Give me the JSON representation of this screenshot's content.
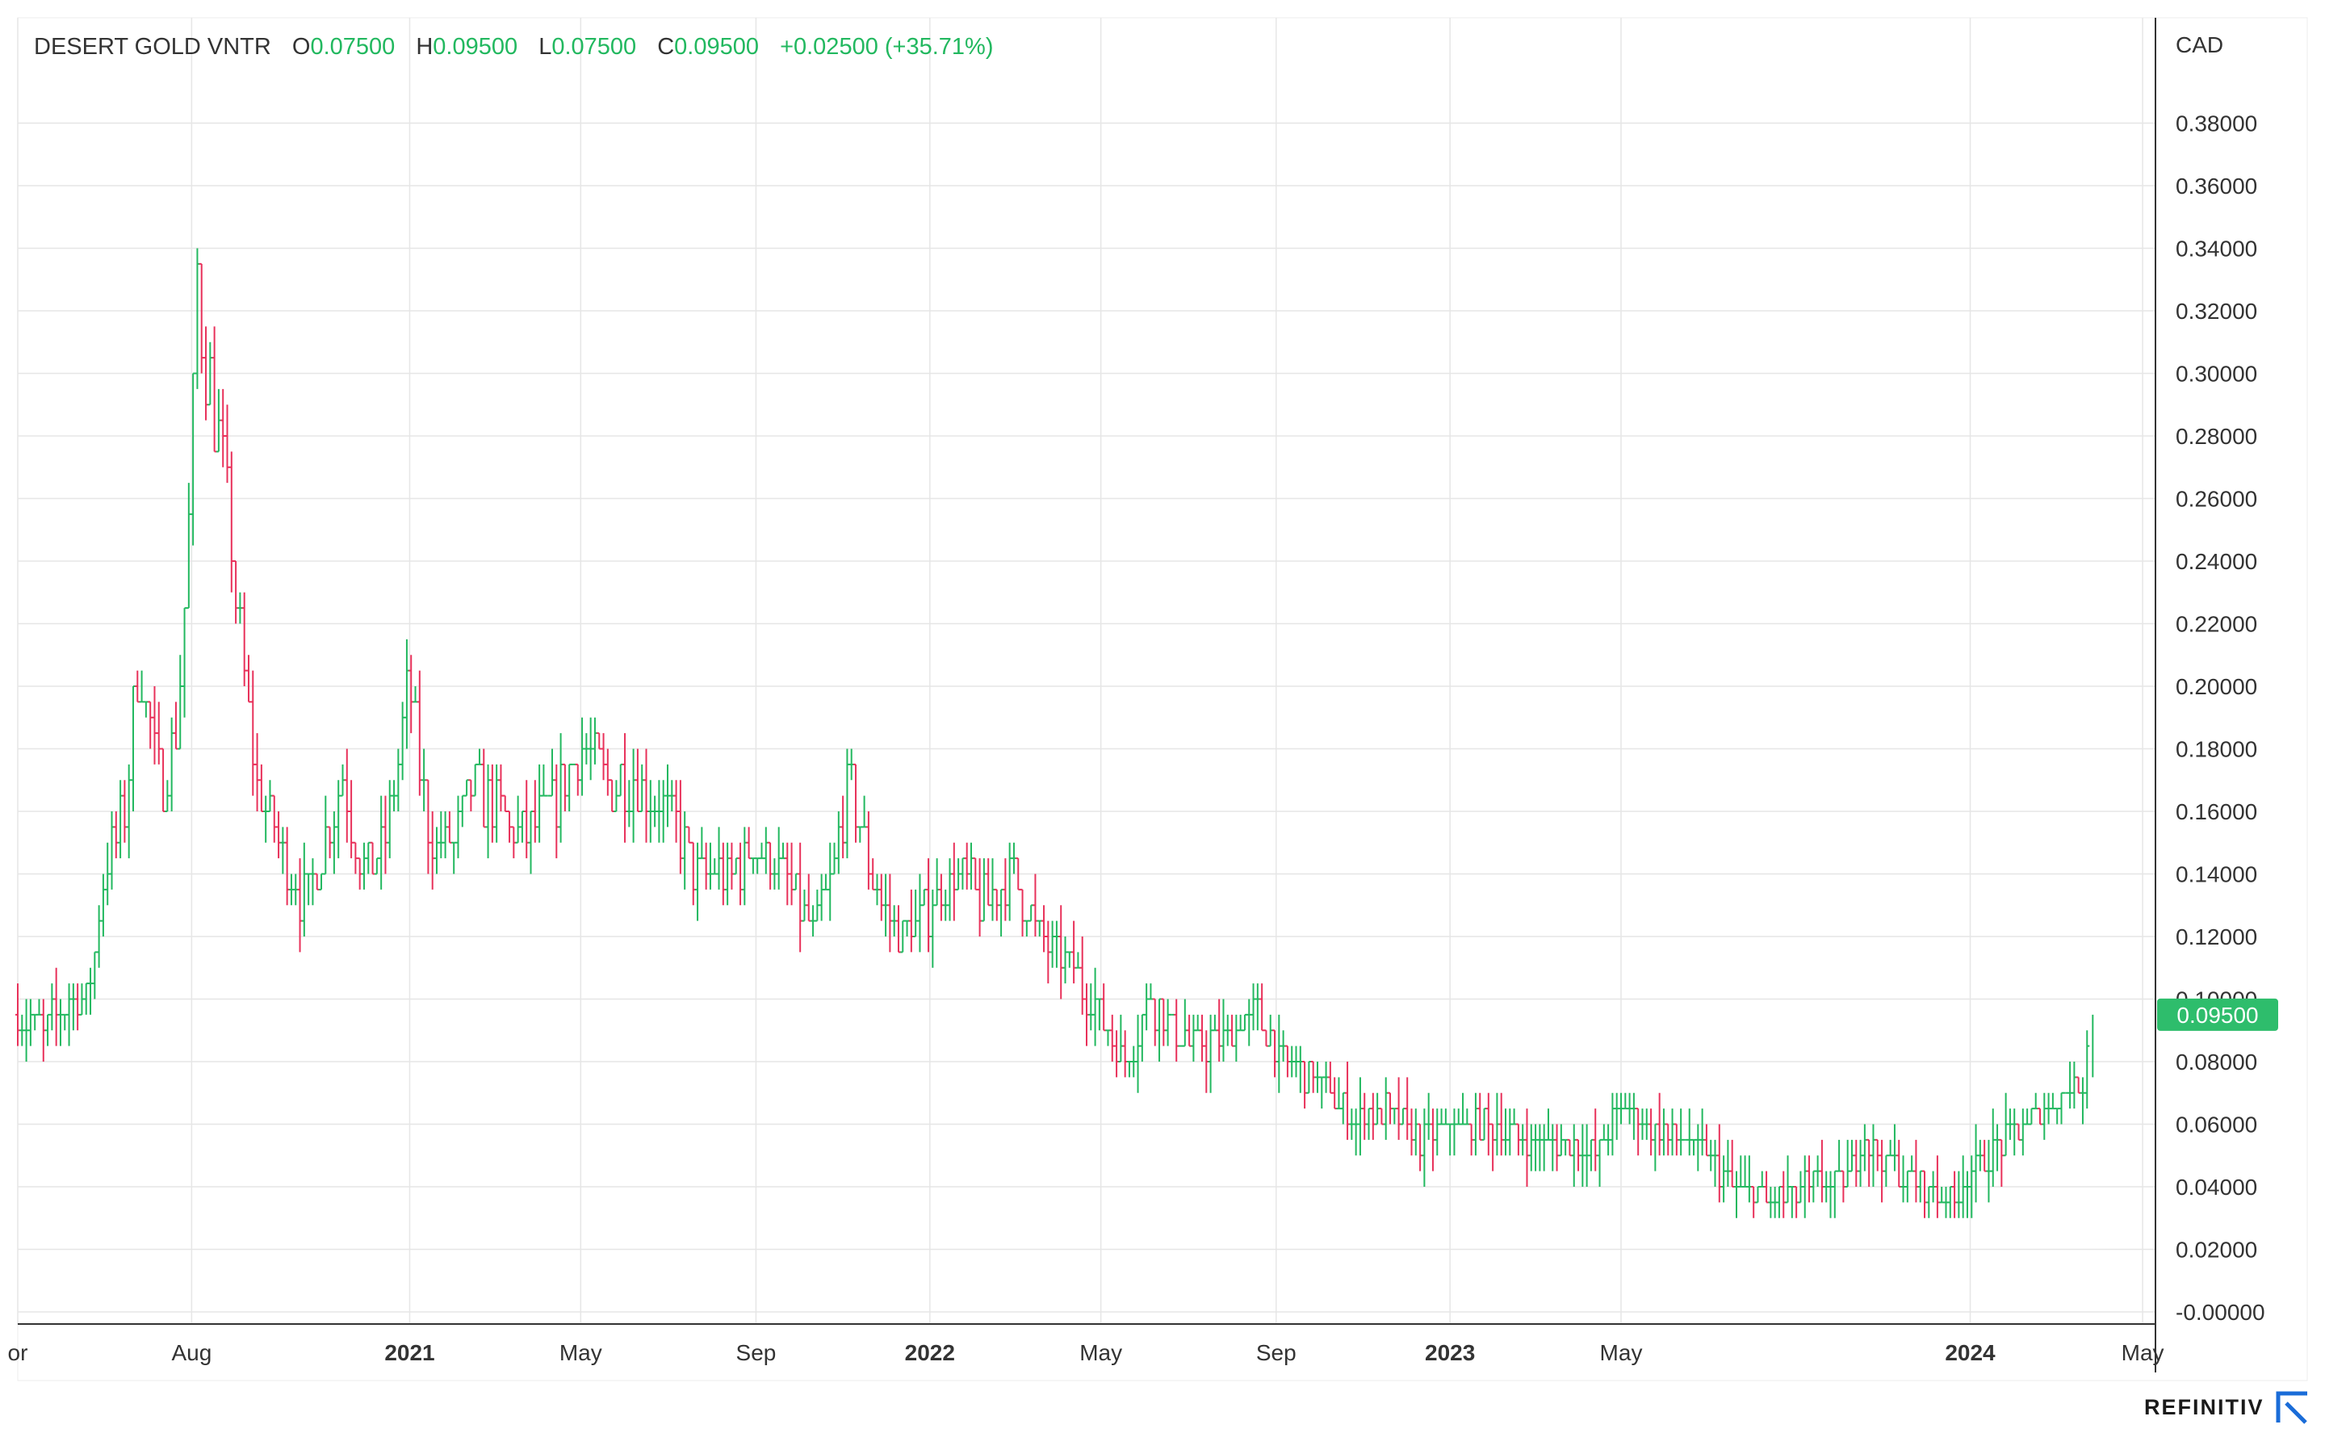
{
  "header": {
    "symbol": "DESERT GOLD VNTR",
    "open_label": "O",
    "open": "0.07500",
    "high_label": "H",
    "high": "0.09500",
    "low_label": "L",
    "low": "0.07500",
    "close_label": "C",
    "close": "0.09500",
    "change": "+0.02500 (+35.71%)"
  },
  "brand": "REFINITIV",
  "colors": {
    "up": "#22b85f",
    "down": "#e8315a",
    "badge": "#2ebd6c",
    "grid": "#e6e6e6",
    "axis": "#333333"
  },
  "chart_data": {
    "type": "ohlc",
    "currency_label": "CAD",
    "last_price_badge": "0.09500",
    "ylim": [
      0,
      0.4
    ],
    "y_ticks": [
      "-0.00000",
      "0.02000",
      "0.04000",
      "0.06000",
      "0.08000",
      "0.10000",
      "0.12000",
      "0.14000",
      "0.16000",
      "0.18000",
      "0.20000",
      "0.22000",
      "0.24000",
      "0.26000",
      "0.28000",
      "0.30000",
      "0.32000",
      "0.34000",
      "0.36000",
      "0.38000"
    ],
    "x_range": [
      "2020-04-01",
      "2024-05-10"
    ],
    "x_ticks": [
      {
        "label": "or",
        "date": "2020-04-01",
        "bold": false
      },
      {
        "label": "Aug",
        "date": "2020-08-01",
        "bold": false
      },
      {
        "label": "2021",
        "date": "2021-01-01",
        "bold": true
      },
      {
        "label": "May",
        "date": "2021-05-01",
        "bold": false
      },
      {
        "label": "Sep",
        "date": "2021-09-01",
        "bold": false
      },
      {
        "label": "2022",
        "date": "2022-01-01",
        "bold": true
      },
      {
        "label": "May",
        "date": "2022-05-01",
        "bold": false
      },
      {
        "label": "Sep",
        "date": "2022-09-01",
        "bold": false
      },
      {
        "label": "2023",
        "date": "2023-01-01",
        "bold": true
      },
      {
        "label": "May",
        "date": "2023-05-01",
        "bold": false
      },
      {
        "label": "2024",
        "date": "2024-01-01",
        "bold": true
      },
      {
        "label": "May",
        "date": "2024-05-01",
        "bold": false
      }
    ],
    "series": [
      {
        "approximate_close_path": [
          [
            "2020-04-01",
            0.095
          ],
          [
            "2020-04-20",
            0.09
          ],
          [
            "2020-05-05",
            0.1
          ],
          [
            "2020-05-20",
            0.1
          ],
          [
            "2020-06-01",
            0.14
          ],
          [
            "2020-06-15",
            0.16
          ],
          [
            "2020-06-25",
            0.21
          ],
          [
            "2020-07-01",
            0.19
          ],
          [
            "2020-07-10",
            0.17
          ],
          [
            "2020-07-20",
            0.18
          ],
          [
            "2020-07-28",
            0.23
          ],
          [
            "2020-08-01",
            0.27
          ],
          [
            "2020-08-05",
            0.33
          ],
          [
            "2020-08-12",
            0.3
          ],
          [
            "2020-08-20",
            0.28
          ],
          [
            "2020-08-28",
            0.25
          ],
          [
            "2020-09-05",
            0.21
          ],
          [
            "2020-09-15",
            0.17
          ],
          [
            "2020-10-01",
            0.15
          ],
          [
            "2020-10-20",
            0.13
          ],
          [
            "2020-11-01",
            0.15
          ],
          [
            "2020-11-15",
            0.17
          ],
          [
            "2020-12-01",
            0.14
          ],
          [
            "2020-12-15",
            0.15
          ],
          [
            "2021-01-01",
            0.2
          ],
          [
            "2021-01-15",
            0.15
          ],
          [
            "2021-02-01",
            0.15
          ],
          [
            "2021-02-15",
            0.17
          ],
          [
            "2021-03-01",
            0.16
          ],
          [
            "2021-03-20",
            0.15
          ],
          [
            "2021-04-10",
            0.16
          ],
          [
            "2021-05-01",
            0.18
          ],
          [
            "2021-05-20",
            0.17
          ],
          [
            "2021-06-10",
            0.17
          ],
          [
            "2021-07-01",
            0.16
          ],
          [
            "2021-07-20",
            0.14
          ],
          [
            "2021-08-15",
            0.14
          ],
          [
            "2021-09-01",
            0.15
          ],
          [
            "2021-09-20",
            0.14
          ],
          [
            "2021-10-10",
            0.12
          ],
          [
            "2021-10-25",
            0.14
          ],
          [
            "2021-11-05",
            0.17
          ],
          [
            "2021-11-20",
            0.14
          ],
          [
            "2021-12-10",
            0.12
          ],
          [
            "2022-01-01",
            0.13
          ],
          [
            "2022-01-20",
            0.14
          ],
          [
            "2022-02-10",
            0.13
          ],
          [
            "2022-03-01",
            0.14
          ],
          [
            "2022-03-20",
            0.12
          ],
          [
            "2022-04-10",
            0.11
          ],
          [
            "2022-05-01",
            0.095
          ],
          [
            "2022-05-20",
            0.08
          ],
          [
            "2022-06-05",
            0.1
          ],
          [
            "2022-06-20",
            0.09
          ],
          [
            "2022-07-10",
            0.085
          ],
          [
            "2022-08-01",
            0.09
          ],
          [
            "2022-08-20",
            0.095
          ],
          [
            "2022-09-05",
            0.08
          ],
          [
            "2022-10-01",
            0.075
          ],
          [
            "2022-10-25",
            0.06
          ],
          [
            "2022-11-15",
            0.065
          ],
          [
            "2022-12-10",
            0.055
          ],
          [
            "2023-01-01",
            0.06
          ],
          [
            "2023-01-25",
            0.06
          ],
          [
            "2023-02-20",
            0.055
          ],
          [
            "2023-03-15",
            0.055
          ],
          [
            "2023-04-10",
            0.05
          ],
          [
            "2023-05-01",
            0.065
          ],
          [
            "2023-05-20",
            0.06
          ],
          [
            "2023-06-10",
            0.055
          ],
          [
            "2023-07-01",
            0.05
          ],
          [
            "2023-07-20",
            0.04
          ],
          [
            "2023-08-15",
            0.035
          ],
          [
            "2023-09-10",
            0.04
          ],
          [
            "2023-10-01",
            0.04
          ],
          [
            "2023-10-20",
            0.055
          ],
          [
            "2023-11-10",
            0.045
          ],
          [
            "2023-12-01",
            0.04
          ],
          [
            "2023-12-20",
            0.035
          ],
          [
            "2024-01-10",
            0.05
          ],
          [
            "2024-01-25",
            0.055
          ],
          [
            "2024-02-10",
            0.06
          ],
          [
            "2024-02-25",
            0.065
          ],
          [
            "2024-03-10",
            0.07
          ],
          [
            "2024-03-20",
            0.075
          ],
          [
            "2024-03-25",
            0.095
          ]
        ]
      }
    ]
  }
}
